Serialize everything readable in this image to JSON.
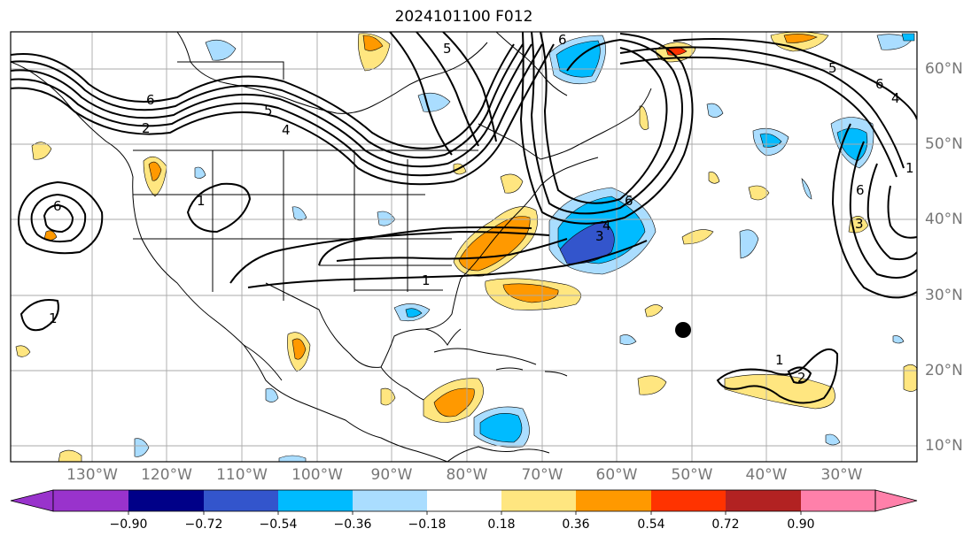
{
  "title": "2024101100 F012",
  "map": {
    "lon_labels": [
      "130°W",
      "120°W",
      "110°W",
      "100°W",
      "90°W",
      "80°W",
      "70°W",
      "60°W",
      "50°W",
      "40°W",
      "30°W"
    ],
    "lat_labels": [
      "60°N",
      "50°N",
      "40°N",
      "30°N",
      "20°N",
      "10°N"
    ],
    "contour_labels": [
      "6",
      "5",
      "4",
      "2",
      "1",
      "1",
      "6",
      "5",
      "6",
      "4",
      "3",
      "1",
      "1",
      "5",
      "6",
      "4",
      "6",
      "1",
      "2",
      "3",
      "6"
    ],
    "marker": {
      "lon": -51.5,
      "lat": 25.5
    }
  },
  "colorbar": {
    "ticks": [
      "−0.90",
      "−0.72",
      "−0.54",
      "−0.36",
      "−0.18",
      "0.18",
      "0.36",
      "0.54",
      "0.72",
      "0.90"
    ],
    "colors": [
      "#9933cc",
      "#000088",
      "#3355cc",
      "#00bbff",
      "#aaddff",
      "#ffffff",
      "#ffe680",
      "#ff9900",
      "#ff3300",
      "#b22222",
      "#ff80aa"
    ]
  }
}
